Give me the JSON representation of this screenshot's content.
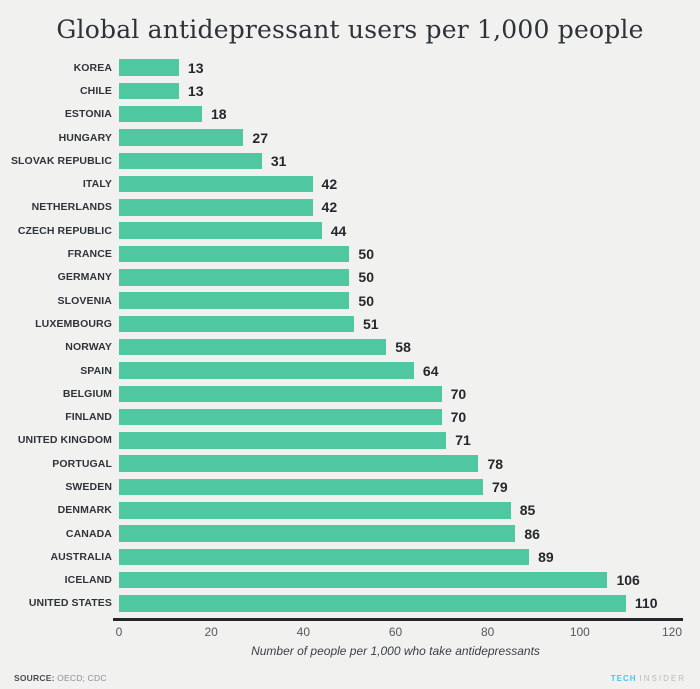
{
  "title": "Global antidepressant users per 1,000 people",
  "chart_data": {
    "type": "bar",
    "orientation": "horizontal",
    "title": "Global antidepressant users per 1,000 people",
    "categories": [
      "KOREA",
      "CHILE",
      "ESTONIA",
      "HUNGARY",
      "SLOVAK REPUBLIC",
      "ITALY",
      "NETHERLANDS",
      "CZECH REPUBLIC",
      "FRANCE",
      "GERMANY",
      "SLOVENIA",
      "LUXEMBOURG",
      "NORWAY",
      "SPAIN",
      "BELGIUM",
      "FINLAND",
      "UNITED KINGDOM",
      "PORTUGAL",
      "SWEDEN",
      "DENMARK",
      "CANADA",
      "AUSTRALIA",
      "ICELAND",
      "UNITED STATES"
    ],
    "values": [
      13,
      13,
      18,
      27,
      31,
      42,
      42,
      44,
      50,
      50,
      50,
      51,
      58,
      64,
      70,
      70,
      71,
      78,
      79,
      85,
      86,
      89,
      106,
      110
    ],
    "xlabel": "Number of people per 1,000 who take antidepressants",
    "ylabel": "",
    "xlim": [
      0,
      120
    ],
    "ticks": [
      0,
      20,
      40,
      60,
      80,
      100,
      120
    ],
    "grid": false,
    "legend": false,
    "bar_color": "#4fc7a0"
  },
  "footer": {
    "source_label": "SOURCE:",
    "source_value": " OECD; CDC",
    "brand_primary": "TECH",
    "brand_secondary": "INSIDER"
  },
  "colors": {
    "background": "#f1f2f0",
    "bar": "#4fc7a0",
    "text": "#2f343a",
    "axis_line": "#23272b",
    "tick_text": "#55585c",
    "brand_blue": "#41c8f5",
    "brand_gray": "#b7bcc0"
  }
}
